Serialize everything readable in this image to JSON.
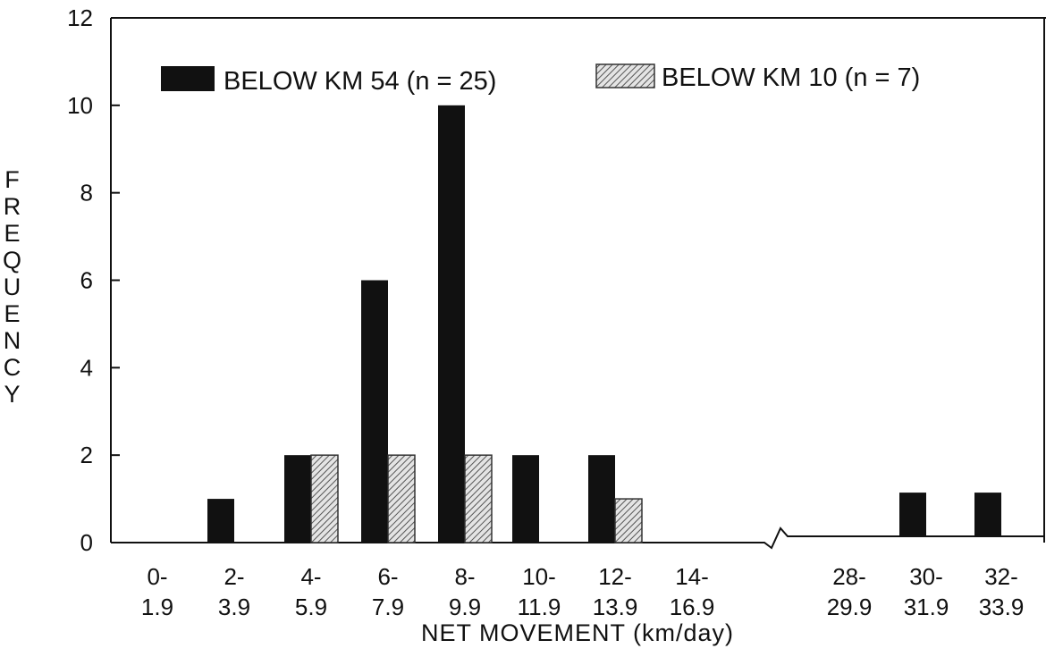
{
  "chart_data": {
    "type": "bar",
    "xlabel": "NET MOVEMENT (km/day)",
    "ylabel": "FREQUENCY",
    "ylim": [
      0,
      12
    ],
    "yticks": [
      "0",
      "2",
      "4",
      "6",
      "8",
      "10",
      "12"
    ],
    "categories": [
      [
        "0-",
        "1.9"
      ],
      [
        "2-",
        "3.9"
      ],
      [
        "4-",
        "5.9"
      ],
      [
        "6-",
        "7.9"
      ],
      [
        "8-",
        "9.9"
      ],
      [
        "10-",
        "11.9"
      ],
      [
        "12-",
        "13.9"
      ],
      [
        "14-",
        "16.9"
      ],
      [
        "28-",
        "29.9"
      ],
      [
        "30-",
        "31.9"
      ],
      [
        "32-",
        "33.9"
      ]
    ],
    "axis_break": "between 14-16.9 and 28-29.9",
    "grid": false,
    "legend_position": "top",
    "series": [
      {
        "name": "BELOW KM 54 (n = 25)",
        "fill": "solid",
        "color": "#111111",
        "values": [
          0,
          1,
          2,
          6,
          10,
          2,
          2,
          0,
          0,
          1,
          1
        ]
      },
      {
        "name": "BELOW KM 10 (n = 7)",
        "fill": "hatched",
        "color": "#777777",
        "values": [
          0,
          0,
          2,
          2,
          2,
          0,
          1,
          0,
          0,
          0,
          0
        ]
      }
    ]
  }
}
